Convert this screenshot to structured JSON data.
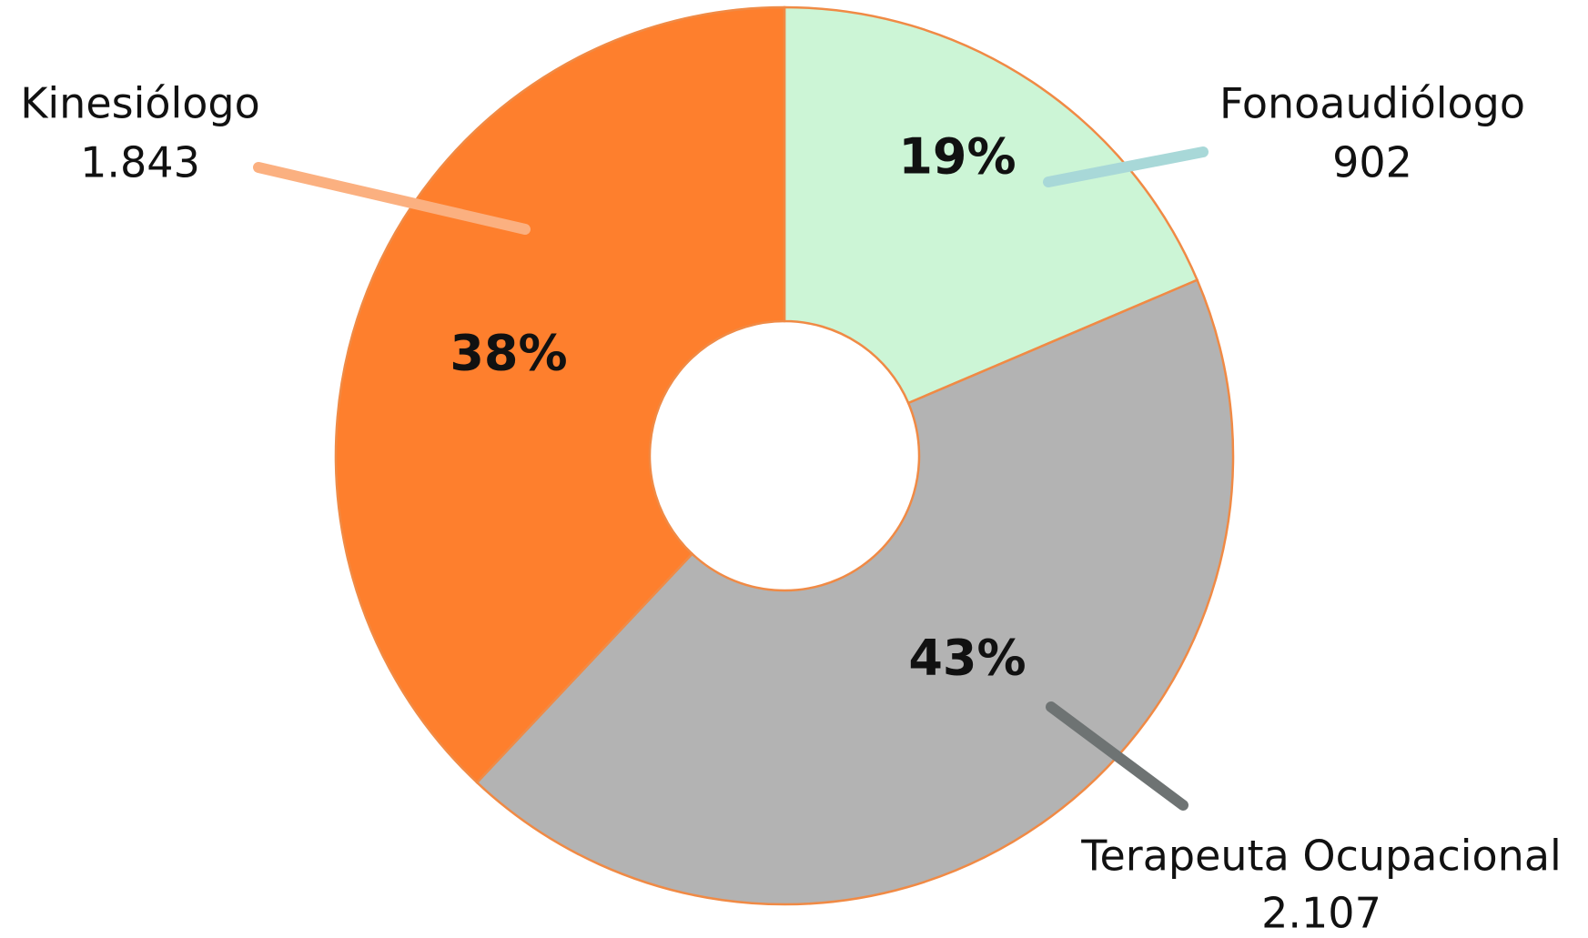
{
  "chart_data": {
    "type": "donut",
    "categories": [
      "Fonoaudiólogo",
      "Terapeuta Ocupacional",
      "Kinesiólogo"
    ],
    "values": [
      902,
      2107,
      1843
    ],
    "value_labels": [
      "902",
      "2.107",
      "1.843"
    ],
    "percentages": [
      19,
      43,
      38
    ],
    "percentage_labels": [
      "19%",
      "43%",
      "38%"
    ],
    "colors": [
      "#ccf5d6",
      "#b3b3b3",
      "#fe7f2d"
    ]
  }
}
